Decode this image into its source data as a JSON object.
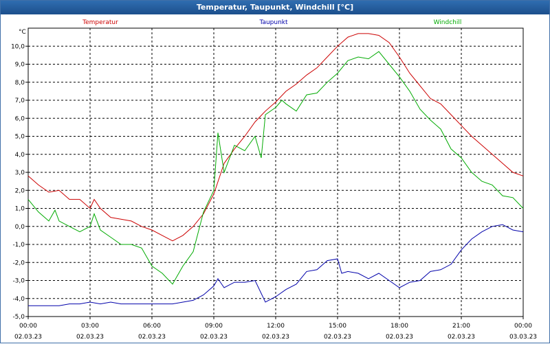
{
  "window": {
    "title": "Temperatur, Taupunkt, Windchill [°C]"
  },
  "chart_data": {
    "type": "line",
    "title": "Temperatur, Taupunkt, Windchill [°C]",
    "ylabel": "°C",
    "ylim": [
      -5,
      11
    ],
    "yticks": [
      "10,0",
      "9,0",
      "8,0",
      "7,0",
      "6,0",
      "5,0",
      "4,0",
      "3,0",
      "2,0",
      "1,0",
      "0,0",
      "-1,0",
      "-2,0",
      "-3,0",
      "-4,0",
      "-5,0"
    ],
    "xlim_hours": [
      0,
      24
    ],
    "xticks": [
      {
        "time": "00:00",
        "date": "02.03.23"
      },
      {
        "time": "03:00",
        "date": "02.03.23"
      },
      {
        "time": "06:00",
        "date": "02.03.23"
      },
      {
        "time": "09:00",
        "date": "02.03.23"
      },
      {
        "time": "12:00",
        "date": "02.03.23"
      },
      {
        "time": "15:00",
        "date": "02.03.23"
      },
      {
        "time": "18:00",
        "date": "02.03.23"
      },
      {
        "time": "21:00",
        "date": "02.03.23"
      },
      {
        "time": "00:00",
        "date": "03.03.23"
      }
    ],
    "grid": true,
    "legend_position": "top",
    "series": [
      {
        "name": "Temperatur",
        "color": "#cc0000",
        "points": [
          [
            0,
            2.8
          ],
          [
            0.5,
            2.3
          ],
          [
            1,
            1.9
          ],
          [
            1.5,
            2.0
          ],
          [
            2,
            1.5
          ],
          [
            2.5,
            1.5
          ],
          [
            3,
            1.0
          ],
          [
            3.2,
            1.5
          ],
          [
            3.5,
            1.0
          ],
          [
            4,
            0.5
          ],
          [
            4.5,
            0.4
          ],
          [
            5,
            0.3
          ],
          [
            5.5,
            0.0
          ],
          [
            6,
            -0.2
          ],
          [
            6.5,
            -0.5
          ],
          [
            7,
            -0.8
          ],
          [
            7.5,
            -0.5
          ],
          [
            8,
            0.0
          ],
          [
            8.5,
            0.7
          ],
          [
            9,
            1.8
          ],
          [
            9.5,
            3.5
          ],
          [
            10,
            4.3
          ],
          [
            10.5,
            5.0
          ],
          [
            11,
            5.8
          ],
          [
            11.5,
            6.4
          ],
          [
            12,
            6.9
          ],
          [
            12.5,
            7.5
          ],
          [
            13,
            7.9
          ],
          [
            13.5,
            8.4
          ],
          [
            14,
            8.8
          ],
          [
            14.5,
            9.4
          ],
          [
            15,
            10.0
          ],
          [
            15.5,
            10.5
          ],
          [
            16,
            10.7
          ],
          [
            16.5,
            10.7
          ],
          [
            17,
            10.6
          ],
          [
            17.5,
            10.2
          ],
          [
            18,
            9.4
          ],
          [
            18.5,
            8.5
          ],
          [
            19,
            7.8
          ],
          [
            19.5,
            7.1
          ],
          [
            20,
            6.8
          ],
          [
            20.5,
            6.2
          ],
          [
            21,
            5.6
          ],
          [
            21.5,
            5.0
          ],
          [
            22,
            4.5
          ],
          [
            22.5,
            4.0
          ],
          [
            23,
            3.5
          ],
          [
            23.5,
            3.0
          ],
          [
            24,
            2.8
          ]
        ]
      },
      {
        "name": "Taupunkt",
        "color": "#0000aa",
        "points": [
          [
            0,
            -4.4
          ],
          [
            0.5,
            -4.4
          ],
          [
            1,
            -4.4
          ],
          [
            1.5,
            -4.4
          ],
          [
            2,
            -4.3
          ],
          [
            2.5,
            -4.3
          ],
          [
            3,
            -4.2
          ],
          [
            3.5,
            -4.3
          ],
          [
            4,
            -4.2
          ],
          [
            4.5,
            -4.3
          ],
          [
            5,
            -4.3
          ],
          [
            5.5,
            -4.3
          ],
          [
            6,
            -4.3
          ],
          [
            6.5,
            -4.3
          ],
          [
            7,
            -4.3
          ],
          [
            7.5,
            -4.2
          ],
          [
            8,
            -4.1
          ],
          [
            8.5,
            -3.8
          ],
          [
            9,
            -3.3
          ],
          [
            9.2,
            -2.9
          ],
          [
            9.5,
            -3.4
          ],
          [
            10,
            -3.1
          ],
          [
            10.5,
            -3.1
          ],
          [
            11,
            -3.0
          ],
          [
            11.5,
            -4.2
          ],
          [
            12,
            -3.9
          ],
          [
            12.5,
            -3.5
          ],
          [
            13,
            -3.2
          ],
          [
            13.5,
            -2.5
          ],
          [
            14,
            -2.4
          ],
          [
            14.5,
            -1.9
          ],
          [
            15,
            -1.8
          ],
          [
            15.2,
            -2.6
          ],
          [
            15.5,
            -2.5
          ],
          [
            16,
            -2.6
          ],
          [
            16.5,
            -2.9
          ],
          [
            17,
            -2.6
          ],
          [
            17.5,
            -3.0
          ],
          [
            18,
            -3.4
          ],
          [
            18.5,
            -3.1
          ],
          [
            19,
            -3.0
          ],
          [
            19.5,
            -2.5
          ],
          [
            20,
            -2.4
          ],
          [
            20.5,
            -2.1
          ],
          [
            21,
            -1.3
          ],
          [
            21.5,
            -0.7
          ],
          [
            22,
            -0.3
          ],
          [
            22.5,
            0.0
          ],
          [
            23,
            0.1
          ],
          [
            23.5,
            -0.2
          ],
          [
            24,
            -0.3
          ]
        ]
      },
      {
        "name": "Windchill",
        "color": "#00aa00",
        "points": [
          [
            0,
            1.5
          ],
          [
            0.5,
            0.8
          ],
          [
            1,
            0.3
          ],
          [
            1.3,
            0.9
          ],
          [
            1.5,
            0.3
          ],
          [
            2,
            0.0
          ],
          [
            2.5,
            -0.3
          ],
          [
            3,
            0.0
          ],
          [
            3.2,
            0.7
          ],
          [
            3.5,
            -0.2
          ],
          [
            4,
            -0.6
          ],
          [
            4.5,
            -1.0
          ],
          [
            5,
            -1.0
          ],
          [
            5.5,
            -1.2
          ],
          [
            6,
            -2.2
          ],
          [
            6.5,
            -2.6
          ],
          [
            7,
            -3.2
          ],
          [
            7.5,
            -2.2
          ],
          [
            8,
            -1.4
          ],
          [
            8.5,
            0.8
          ],
          [
            9,
            2.0
          ],
          [
            9.2,
            5.2
          ],
          [
            9.5,
            3.0
          ],
          [
            10,
            4.5
          ],
          [
            10.5,
            4.2
          ],
          [
            11,
            5.0
          ],
          [
            11.3,
            3.8
          ],
          [
            11.5,
            6.2
          ],
          [
            12,
            6.6
          ],
          [
            12.3,
            7.0
          ],
          [
            12.5,
            6.8
          ],
          [
            13,
            6.4
          ],
          [
            13.5,
            7.3
          ],
          [
            14,
            7.4
          ],
          [
            14.5,
            8.0
          ],
          [
            15,
            8.5
          ],
          [
            15.5,
            9.2
          ],
          [
            16,
            9.4
          ],
          [
            16.5,
            9.3
          ],
          [
            17,
            9.7
          ],
          [
            17.5,
            9.0
          ],
          [
            18,
            8.3
          ],
          [
            18.5,
            7.5
          ],
          [
            19,
            6.5
          ],
          [
            19.5,
            5.9
          ],
          [
            20,
            5.4
          ],
          [
            20.5,
            4.3
          ],
          [
            21,
            3.8
          ],
          [
            21.5,
            3.0
          ],
          [
            22,
            2.5
          ],
          [
            22.5,
            2.3
          ],
          [
            23,
            1.7
          ],
          [
            23.5,
            1.6
          ],
          [
            24,
            1.0
          ]
        ]
      }
    ]
  }
}
